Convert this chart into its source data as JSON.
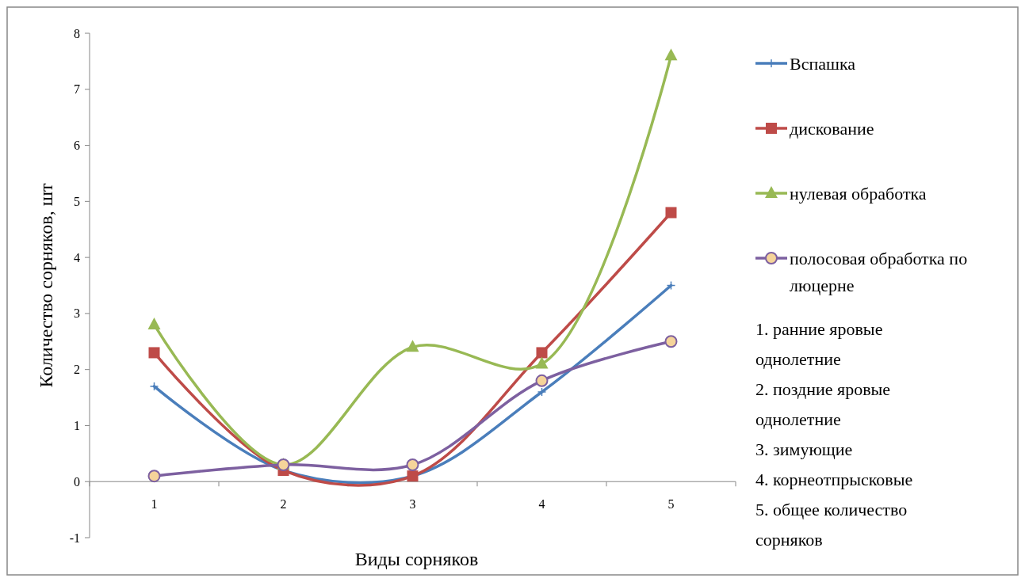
{
  "chart_data": {
    "type": "line",
    "xlabel": "Виды сорняков",
    "ylabel": "Количество сорняков,  шт",
    "categories": [
      "1",
      "2",
      "3",
      "4",
      "5"
    ],
    "ylim": [
      -1,
      8
    ],
    "yticks": [
      -1,
      0,
      1,
      2,
      3,
      4,
      5,
      6,
      7,
      8
    ],
    "grid": false,
    "legend": "right",
    "series": [
      {
        "name": "Вспашка",
        "color": "#4a7ebb",
        "marker": "cross",
        "values": [
          1.7,
          0.2,
          0.1,
          1.6,
          3.5
        ]
      },
      {
        "name": "дискование",
        "color": "#be4b48",
        "marker": "square",
        "values": [
          2.3,
          0.2,
          0.1,
          2.3,
          4.8
        ]
      },
      {
        "name": "нулевая обработка",
        "color": "#98b954",
        "marker": "triangle",
        "values": [
          2.8,
          0.3,
          2.4,
          2.1,
          7.6
        ]
      },
      {
        "name": "полосовая обработка по люцерне",
        "color": "#7d60a0",
        "marker": "circle",
        "values": [
          0.1,
          0.3,
          0.3,
          1.8,
          2.5
        ]
      }
    ],
    "annotations": [
      "1. ранние яровые однолетние",
      "2. поздние яровые однолетние",
      "3. зимующие",
      "4. корнеотпрысковые",
      "5. общее количество сорняков"
    ]
  }
}
